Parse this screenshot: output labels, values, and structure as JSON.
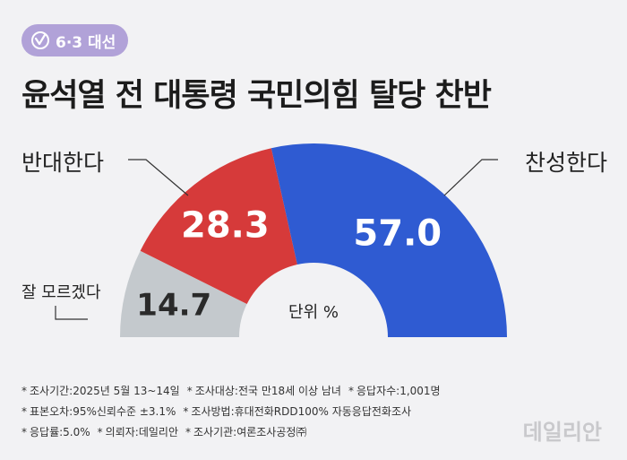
{
  "badge": {
    "icon": "ballot-check-icon",
    "text": "6·3 대선"
  },
  "title": "윤석열 전 대통령 국민의힘 탈당 찬반",
  "chart_data": {
    "type": "pie",
    "style": "semi-donut",
    "title": "윤석열 전 대통령 국민의힘 탈당 찬반",
    "unit_label": "단위 %",
    "slices": [
      {
        "label": "잘 모르겠다",
        "value": 14.7,
        "value_text": "14.7",
        "color": "#c4c9cd"
      },
      {
        "label": "반대한다",
        "value": 28.3,
        "value_text": "28.3",
        "color": "#d63a3a"
      },
      {
        "label": "찬성한다",
        "value": 57.0,
        "value_text": "57.0",
        "color": "#2f5bd2"
      }
    ]
  },
  "notes": [
    [
      "조사기간:2025년 5월 13~14일",
      "조사대상:전국 만18세 이상 남녀",
      "응답자수:1,001명"
    ],
    [
      "표본오차:95%신뢰수준 ±3.1%",
      "조사방법:휴대전화RDD100% 자동응답전화조사"
    ],
    [
      "응답률:5.0%",
      "의뢰자:데일리안",
      "조사기관:여론조사공정㈜"
    ]
  ],
  "note_marker": "*",
  "watermark": "데일리안"
}
